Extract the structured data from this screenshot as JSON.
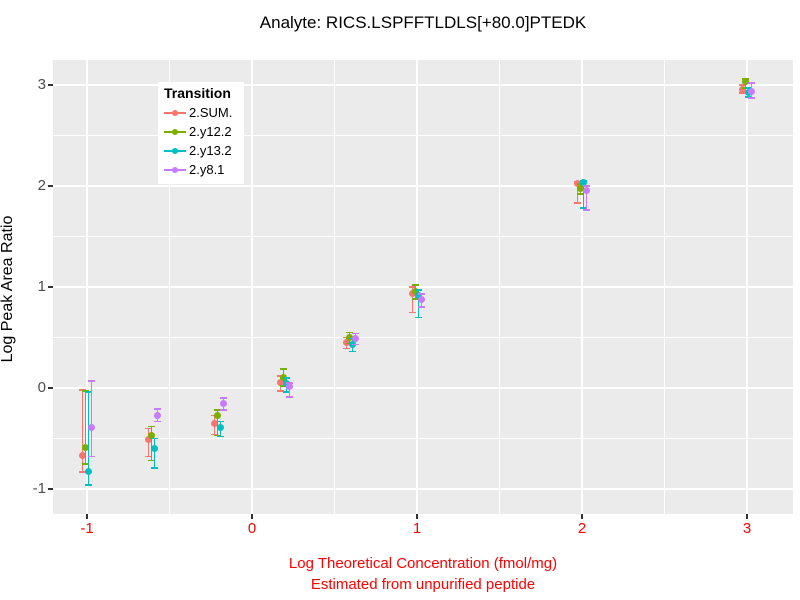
{
  "window": {
    "title": "Analyte: RICS.LSPFFTLDLS[+80.0]PTEDK"
  },
  "chart_data": {
    "type": "scatter",
    "subtype": "pointrange-with-errorbars (ggplot2 style, dodged groups)",
    "title": "Analyte: RICS.LSPFFTLDLS[+80.0]PTEDK",
    "xlabel": "Log Theoretical Concentration (fmol/mg)",
    "xlabel_line2": "Estimated from unpurified peptide",
    "ylabel": "Log Peak Area Ratio",
    "xlim": [
      -1.2,
      3.28
    ],
    "ylim": [
      -1.25,
      3.25
    ],
    "x_ticks": [
      -1,
      0,
      1,
      2,
      3
    ],
    "y_ticks": [
      -1,
      0,
      1,
      2,
      3
    ],
    "grid": "white major + minor gridlines on gray panel",
    "legend": {
      "title": "Transition",
      "position": "inside top-left"
    },
    "colors": {
      "panel_bg": "#EBEBEB",
      "grid": "#FFFFFF",
      "x_axis_text": "#FF0000",
      "x_axis_title": "#FF0000",
      "y_axis_text": "#4D4D4D",
      "title_text": "#000000",
      "tick_marks": "#333333",
      "legend_bg": "#FFFFFF"
    },
    "series": [
      {
        "name": "2.SUM.",
        "color": "#F8766D",
        "points": [
          {
            "x": -1.0,
            "y": -0.67,
            "lo": -0.83,
            "hi": -0.02
          },
          {
            "x": -0.6,
            "y": -0.51,
            "lo": -0.68,
            "hi": -0.4
          },
          {
            "x": -0.2,
            "y": -0.35,
            "lo": -0.46,
            "hi": -0.27
          },
          {
            "x": 0.2,
            "y": 0.05,
            "lo": -0.03,
            "hi": 0.12
          },
          {
            "x": 0.6,
            "y": 0.45,
            "lo": 0.39,
            "hi": 0.5
          },
          {
            "x": 1.0,
            "y": 0.94,
            "lo": 0.75,
            "hi": 1.0
          },
          {
            "x": 2.0,
            "y": 2.02,
            "lo": 1.83,
            "hi": 2.04
          },
          {
            "x": 3.0,
            "y": 2.96,
            "lo": 2.92,
            "hi": 3.0
          }
        ]
      },
      {
        "name": "2.y12.2",
        "color": "#7CAE00",
        "points": [
          {
            "x": -1.0,
            "y": -0.59,
            "lo": -0.75,
            "hi": -0.03
          },
          {
            "x": -0.6,
            "y": -0.47,
            "lo": -0.72,
            "hi": -0.38
          },
          {
            "x": -0.2,
            "y": -0.27,
            "lo": -0.47,
            "hi": -0.22
          },
          {
            "x": 0.2,
            "y": 0.1,
            "lo": 0.02,
            "hi": 0.19
          },
          {
            "x": 0.6,
            "y": 0.5,
            "lo": 0.44,
            "hi": 0.55
          },
          {
            "x": 1.0,
            "y": 0.96,
            "lo": 0.88,
            "hi": 1.02
          },
          {
            "x": 2.0,
            "y": 1.98,
            "lo": 1.92,
            "hi": 2.02
          },
          {
            "x": 3.0,
            "y": 3.03,
            "lo": 2.97,
            "hi": 3.06
          }
        ]
      },
      {
        "name": "2.y13.2",
        "color": "#00BFC4",
        "points": [
          {
            "x": -1.0,
            "y": -0.83,
            "lo": -0.96,
            "hi": -0.04
          },
          {
            "x": -0.6,
            "y": -0.6,
            "lo": -0.79,
            "hi": -0.5
          },
          {
            "x": -0.2,
            "y": -0.39,
            "lo": -0.48,
            "hi": -0.33
          },
          {
            "x": 0.2,
            "y": 0.04,
            "lo": -0.04,
            "hi": 0.1
          },
          {
            "x": 0.6,
            "y": 0.43,
            "lo": 0.36,
            "hi": 0.49
          },
          {
            "x": 1.0,
            "y": 0.92,
            "lo": 0.7,
            "hi": 0.97
          },
          {
            "x": 2.0,
            "y": 2.03,
            "lo": 1.78,
            "hi": 2.05
          },
          {
            "x": 3.0,
            "y": 2.93,
            "lo": 2.88,
            "hi": 2.97
          }
        ]
      },
      {
        "name": "2.y8.1",
        "color": "#C77CFF",
        "points": [
          {
            "x": -1.0,
            "y": -0.39,
            "lo": -0.68,
            "hi": 0.07
          },
          {
            "x": -0.6,
            "y": -0.27,
            "lo": -0.33,
            "hi": -0.21
          },
          {
            "x": -0.2,
            "y": -0.15,
            "lo": -0.22,
            "hi": -0.1
          },
          {
            "x": 0.2,
            "y": 0.01,
            "lo": -0.09,
            "hi": 0.05
          },
          {
            "x": 0.6,
            "y": 0.49,
            "lo": 0.43,
            "hi": 0.54
          },
          {
            "x": 1.0,
            "y": 0.88,
            "lo": 0.8,
            "hi": 0.93
          },
          {
            "x": 2.0,
            "y": 1.96,
            "lo": 1.76,
            "hi": 2.0
          },
          {
            "x": 3.0,
            "y": 2.94,
            "lo": 2.87,
            "hi": 3.02
          }
        ]
      }
    ]
  }
}
